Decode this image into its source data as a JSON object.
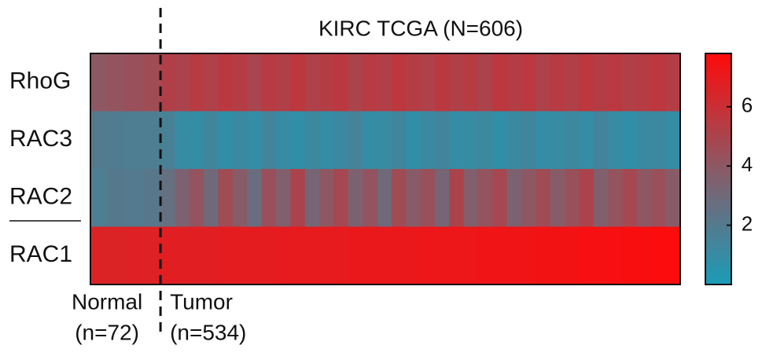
{
  "chart_data": {
    "type": "heatmap",
    "title": "KIRC TCGA (N=606)",
    "groups": [
      {
        "name": "Normal",
        "n": {
          "value": 72,
          "label": "(n=72)"
        }
      },
      {
        "name": "Tumor",
        "n": {
          "value": 534,
          "label": "(n=534)"
        }
      }
    ],
    "series": [
      {
        "name": "RhoG",
        "normal": [
          4.0,
          4.2,
          4.4,
          4.6
        ],
        "tumor": [
          5.2,
          5.0,
          5.4,
          5.1,
          5.5,
          5.3,
          4.9,
          5.4,
          5.2,
          5.6,
          5.1,
          5.3,
          5.5,
          5.0,
          5.4,
          5.2,
          5.6,
          5.3,
          5.1,
          5.5,
          5.2,
          5.4,
          5.0,
          5.6,
          5.3,
          5.5,
          5.1,
          5.4,
          5.2,
          5.6,
          5.3,
          5.5,
          5.2,
          5.4,
          5.6,
          5.3
        ]
      },
      {
        "name": "RAC3",
        "normal": [
          2.0,
          1.9,
          1.8,
          1.8
        ],
        "tumor": [
          1.6,
          1.0,
          0.9,
          1.3,
          0.8,
          1.1,
          0.9,
          1.4,
          1.0,
          0.8,
          1.2,
          0.9,
          1.1,
          1.5,
          0.9,
          1.0,
          1.3,
          0.8,
          1.1,
          1.4,
          0.9,
          1.0,
          1.2,
          0.8,
          1.1,
          1.3,
          0.9,
          1.0,
          1.2,
          0.9,
          1.4,
          1.0,
          0.8,
          1.1,
          1.2,
          0.9
        ]
      },
      {
        "name": "RAC2",
        "normal": [
          1.8,
          2.1,
          2.0,
          2.2
        ],
        "tumor": [
          2.6,
          3.4,
          4.2,
          3.0,
          4.6,
          3.8,
          2.8,
          4.4,
          3.6,
          5.0,
          3.2,
          4.0,
          4.8,
          3.4,
          4.2,
          3.0,
          4.6,
          3.8,
          4.4,
          3.2,
          5.0,
          3.6,
          4.2,
          4.8,
          3.4,
          4.0,
          4.6,
          3.8,
          4.4,
          5.0,
          3.6,
          4.2,
          4.8,
          4.0,
          4.4,
          3.8
        ]
      },
      {
        "name": "RAC1",
        "normal": [
          6.6,
          6.6,
          6.7,
          6.7
        ],
        "tumor": [
          6.8,
          6.8,
          6.8,
          6.8,
          6.9,
          6.9,
          6.9,
          6.9,
          7.0,
          7.0,
          7.0,
          7.0,
          7.0,
          7.1,
          7.1,
          7.1,
          7.1,
          7.1,
          7.2,
          7.2,
          7.2,
          7.2,
          7.3,
          7.3,
          7.3,
          7.3,
          7.4,
          7.4,
          7.4,
          7.5,
          7.5,
          7.5,
          7.6,
          7.6,
          7.7,
          7.7
        ]
      }
    ],
    "colorscale": [
      "#1a9cb8",
      "#8a5a66",
      "#ff0a0a"
    ],
    "ylim": [
      0,
      7.8
    ],
    "yticks": [
      2,
      4,
      6
    ]
  }
}
